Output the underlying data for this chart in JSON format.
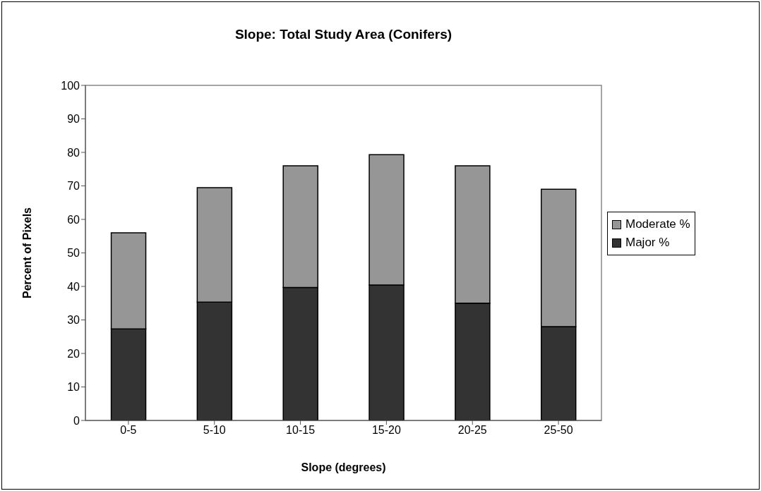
{
  "chart_data": {
    "type": "bar",
    "title": "Slope: Total Study Area (Conifers)",
    "xlabel": "Slope (degrees)",
    "ylabel": "Percent of Pixels",
    "categories": [
      "0-5",
      "5-10",
      "10-15",
      "15-20",
      "20-25",
      "25-50"
    ],
    "stacked": true,
    "legend": "right",
    "grid": false,
    "ylim": [
      0,
      100
    ],
    "yticks": [
      0,
      10,
      20,
      30,
      40,
      50,
      60,
      70,
      80,
      90,
      100
    ],
    "series": [
      {
        "name": "Major %",
        "color": "#333333",
        "values": [
          27.3,
          35.3,
          39.7,
          40.4,
          35,
          28
        ]
      },
      {
        "name": "Moderate %",
        "color": "#969696",
        "values": [
          28.7,
          34.2,
          36.3,
          38.9,
          41,
          41
        ]
      }
    ]
  }
}
